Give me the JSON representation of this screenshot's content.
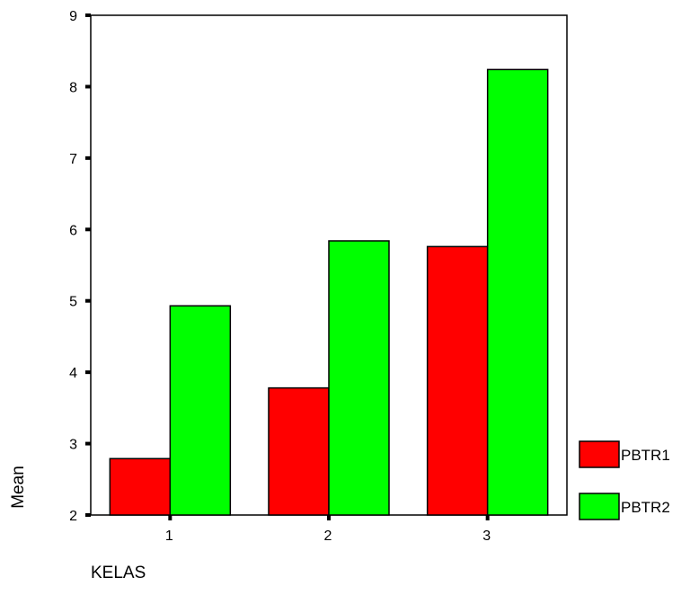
{
  "chart_data": {
    "type": "bar",
    "title": "",
    "xlabel": "KELAS",
    "ylabel": "Mean",
    "categories": [
      "1",
      "2",
      "3"
    ],
    "series": [
      {
        "name": "PBTR1",
        "color": "#ff0000",
        "values": [
          2.79,
          3.78,
          5.76
        ]
      },
      {
        "name": "PBTR2",
        "color": "#00ff00",
        "values": [
          4.93,
          5.84,
          8.24
        ]
      }
    ],
    "ylim": [
      2,
      9
    ],
    "yticks": [
      "2",
      "3",
      "4",
      "5",
      "6",
      "7",
      "8",
      "9"
    ],
    "grid": false,
    "legend_position": "right"
  }
}
